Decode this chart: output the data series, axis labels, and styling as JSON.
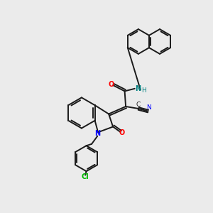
{
  "background_color": "#ebebeb",
  "bond_color": "#1a1a1a",
  "oxygen_color": "#ff0000",
  "nitrogen_color": "#0000ff",
  "chlorine_color": "#00bb00",
  "nh_color": "#008080",
  "cn_color": "#1a1a1a",
  "figsize": [
    3.0,
    3.0
  ],
  "dpi": 100,
  "lw": 1.4,
  "fs": 6.5,
  "xlim": [
    0,
    10
  ],
  "ylim": [
    0,
    10
  ]
}
